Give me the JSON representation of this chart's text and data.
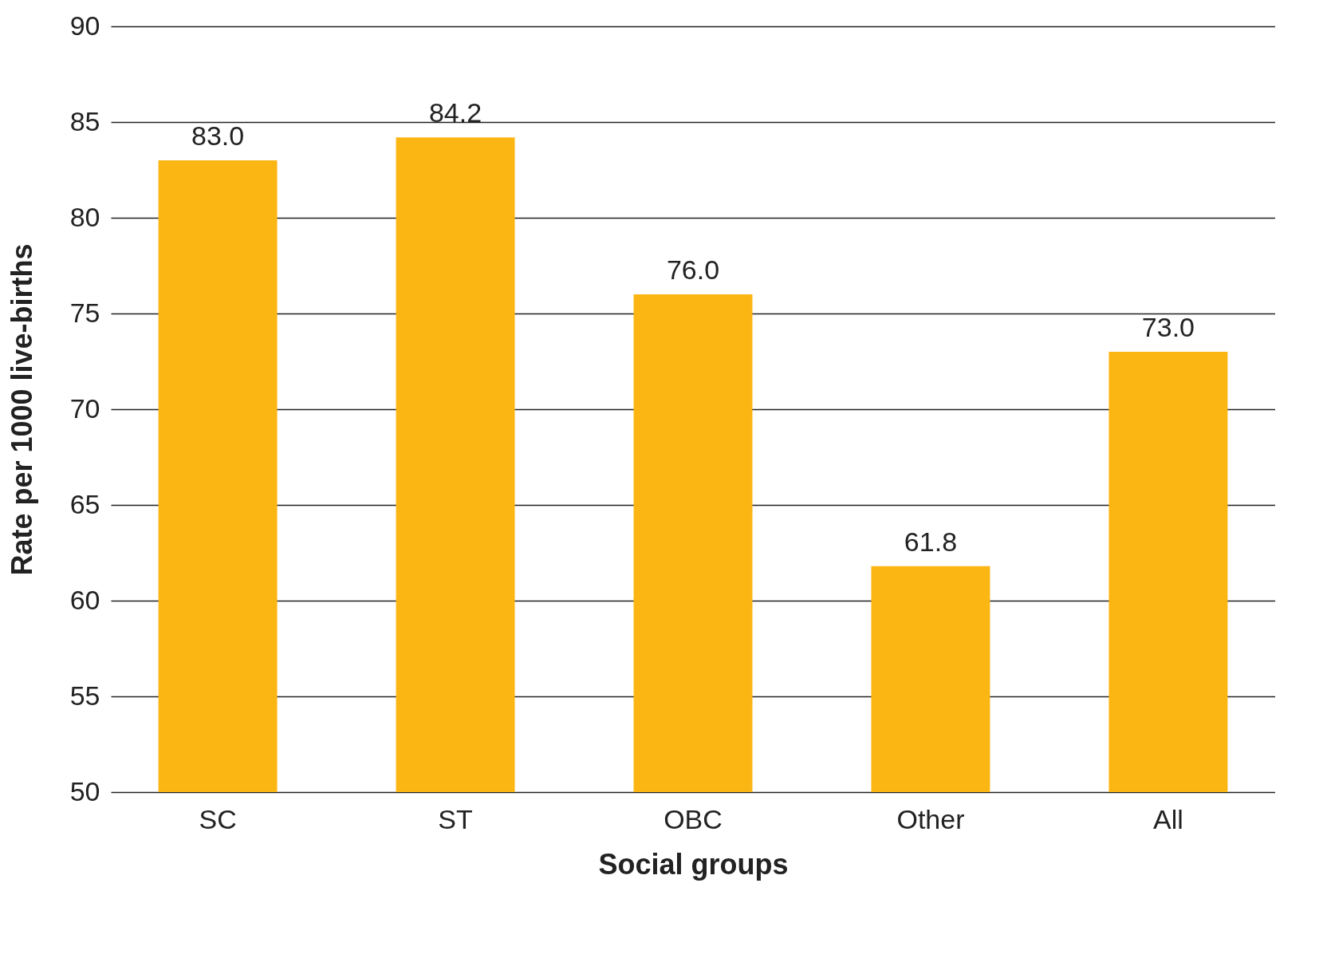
{
  "chart_data": {
    "type": "bar",
    "xlabel": "Social groups",
    "ylabel": "Rate per 1000 live-births",
    "categories": [
      "SC",
      "ST",
      "OBC",
      "Other",
      "All"
    ],
    "values": [
      83.0,
      84.2,
      76.0,
      61.8,
      73.0
    ],
    "color": "#fbb614",
    "ylim": [
      50,
      90
    ],
    "yticks": [
      50,
      55,
      60,
      65,
      70,
      75,
      80,
      85,
      90
    ],
    "value_labels": [
      "83.0",
      "84.2",
      "76.0",
      "61.8",
      "73.0"
    ],
    "grid": "y"
  }
}
